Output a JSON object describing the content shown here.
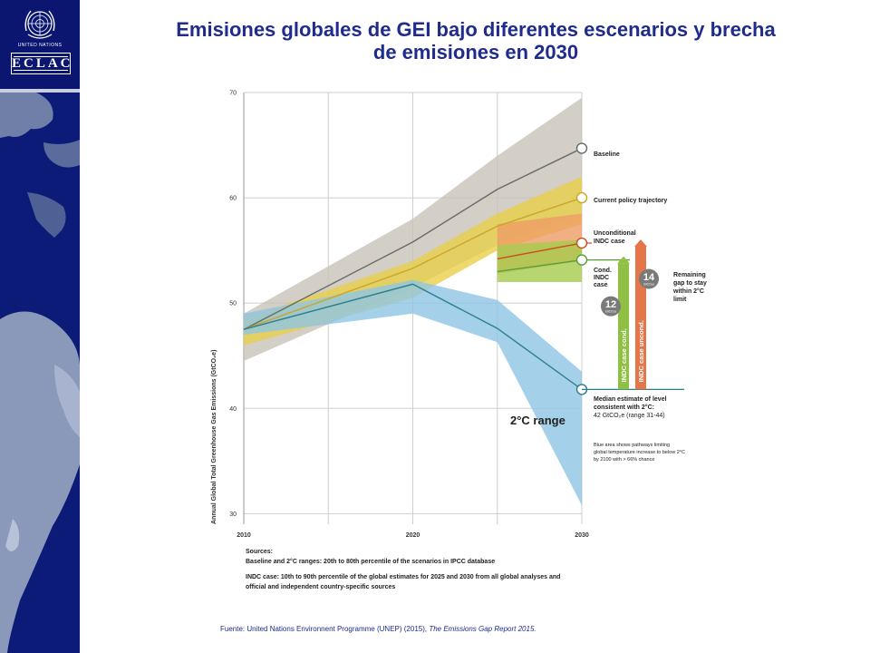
{
  "header": {
    "title_line1": "Emisiones globales de GEI bajo diferentes escenarios y brecha",
    "title_line2": "de emisiones en 2030"
  },
  "logos": {
    "un_text": "UNITED NATIONS",
    "org_text": "ECLAC"
  },
  "chart_data": {
    "type": "area",
    "ylabel": "Annual Global Total Greenhouse Gas Emissions (GtCO₂e)",
    "xlabel": "",
    "x_ticks": [
      "2010",
      "2020",
      "2030"
    ],
    "y_ticks": [
      "30",
      "40",
      "50",
      "60",
      "70"
    ],
    "xlim": [
      2010,
      2030
    ],
    "ylim": [
      29,
      70
    ],
    "grid": true,
    "bands": [
      {
        "name": "Baseline range",
        "color": "#c8c2b8",
        "x": [
          2010,
          2020,
          2025,
          2030
        ],
        "low": [
          44.5,
          51.5,
          55.5,
          58.5
        ],
        "high": [
          49,
          58,
          64,
          69.5
        ]
      },
      {
        "name": "Current policy range",
        "color": "#e8cf4a",
        "x": [
          2010,
          2020,
          2025,
          2030
        ],
        "low": [
          46,
          50.5,
          55,
          57.5
        ],
        "high": [
          48.5,
          54,
          58.5,
          62
        ]
      },
      {
        "name": "2°C range",
        "color": "#8ec4e4",
        "x": [
          2010,
          2020,
          2025,
          2030
        ],
        "low": [
          47,
          49,
          46.3,
          30.8
        ],
        "high": [
          49,
          52.2,
          50.3,
          43.5
        ]
      },
      {
        "name": "Unconditional INDC",
        "color": "#ee9c64",
        "x": [
          2025,
          2030
        ],
        "low": [
          52.8,
          54
        ],
        "high": [
          57.5,
          58.5
        ]
      },
      {
        "name": "Conditional INDC",
        "color": "#a6cc4c",
        "x": [
          2025,
          2030
        ],
        "low": [
          52,
          52
        ],
        "high": [
          55.5,
          56
        ]
      }
    ],
    "series": [
      {
        "name": "Baseline",
        "color": "#666c64",
        "x": [
          2010,
          2020,
          2025,
          2030
        ],
        "values": [
          47.5,
          55.8,
          60.8,
          64.7
        ]
      },
      {
        "name": "Current policy trajectory",
        "color": "#c9a62a",
        "x": [
          2010,
          2020,
          2025,
          2030
        ],
        "values": [
          47.5,
          53.3,
          57.3,
          60
        ]
      },
      {
        "name": "2°C median",
        "color": "#2a7f8e",
        "x": [
          2010,
          2020,
          2025,
          2030
        ],
        "values": [
          47.5,
          51.8,
          47.6,
          41.8
        ]
      },
      {
        "name": "Unconditional INDC case",
        "color": "#c8501e",
        "x": [
          2025,
          2030
        ],
        "values": [
          54.2,
          55.7
        ]
      },
      {
        "name": "Cond. INDC case",
        "color": "#5a9e3a",
        "x": [
          2025,
          2030
        ],
        "values": [
          53,
          54.1
        ]
      }
    ],
    "labels": {
      "baseline": "Baseline",
      "current_policy": "Current policy trajectory",
      "uncond_line1": "Unconditional",
      "uncond_line2": "INDC case",
      "cond_line1": "Cond.",
      "cond_line2": "INDC",
      "cond_line3": "case",
      "remaining_line1": "Remaining",
      "remaining_line2": "gap to stay",
      "remaining_line3": "within 2°C",
      "remaining_line4": "limit",
      "median_line1": "Median estimate of level",
      "median_line2": "consistent with 2°C:",
      "median_line3": "42 GtCO₂e (range 31-44)",
      "range_label": "2°C range",
      "blue_note1": "Blue area shows pathways limiting",
      "blue_note2": "global temperature increase to below 2°C",
      "blue_note3": "by 2100 with > 66% chance"
    },
    "gaps": [
      {
        "name": "INDC case cond.",
        "value": 12,
        "unit": "GtCO₂e",
        "color": "#8fc045",
        "from": 41.8,
        "to": 54.1
      },
      {
        "name": "INDC case uncond.",
        "value": 14,
        "unit": "GtCO₂e",
        "color": "#e5764a",
        "from": 41.8,
        "to": 55.7
      }
    ]
  },
  "sources": {
    "heading": "Sources:",
    "line1": "Baseline and 2°C ranges:  20th to 80th percentile of the scenarios in IPCC database",
    "line2": "INDC case: 10th to 90th percentile of the global estimates for 2025 and 2030 from all global analyses and",
    "line3": "official and  independent country-specific sources"
  },
  "footer": {
    "text": "Fuente: United Nations Environnent Programme (UNEP) (2015), ",
    "italic": "The Emissions Gap Report 2015."
  }
}
